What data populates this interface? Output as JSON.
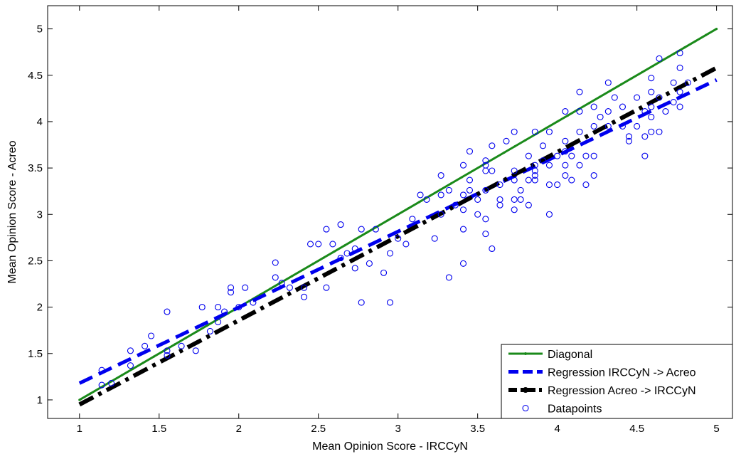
{
  "chart_data": {
    "type": "scatter",
    "title": "",
    "xlabel": "Mean Opinion Score - IRCCyN",
    "ylabel": "Mean Opinion Score - Acreo",
    "xlim": [
      0.8,
      5.1
    ],
    "ylim": [
      0.8,
      5.25
    ],
    "xticks": [
      "1",
      "1.5",
      "2",
      "2.5",
      "3",
      "3.5",
      "4",
      "4.5",
      "5"
    ],
    "yticks": [
      "1",
      "1.5",
      "2",
      "2.5",
      "3",
      "3.5",
      "4",
      "4.5",
      "5"
    ],
    "grid": false,
    "legend_position": "bottom-right",
    "series": [
      {
        "name": "Diagonal",
        "kind": "line",
        "color": "#1a8a1a",
        "style": "solid-dotted",
        "x": [
          1,
          5
        ],
        "y": [
          1,
          5
        ]
      },
      {
        "name": "Regression IRCCyN -> Acreo",
        "kind": "line",
        "color": "#0000ee",
        "style": "dashed",
        "x": [
          1,
          5
        ],
        "y": [
          1.18,
          4.45
        ]
      },
      {
        "name": "Regression Acreo -> IRCCyN",
        "kind": "line",
        "color": "#000000",
        "style": "dash-dot",
        "x": [
          1,
          5
        ],
        "y": [
          0.95,
          4.58
        ]
      },
      {
        "name": "Datapoints",
        "kind": "scatter",
        "color": "#0000ee",
        "marker": "circle-open",
        "points": [
          [
            1.14,
            1.32
          ],
          [
            1.14,
            1.16
          ],
          [
            1.2,
            1.18
          ],
          [
            1.32,
            1.53
          ],
          [
            1.32,
            1.37
          ],
          [
            1.41,
            1.58
          ],
          [
            1.45,
            1.69
          ],
          [
            1.55,
            1.95
          ],
          [
            1.55,
            1.53
          ],
          [
            1.55,
            1.48
          ],
          [
            1.64,
            1.58
          ],
          [
            1.73,
            1.53
          ],
          [
            1.77,
            2.0
          ],
          [
            1.82,
            1.74
          ],
          [
            1.87,
            2.0
          ],
          [
            1.87,
            1.84
          ],
          [
            1.91,
            1.95
          ],
          [
            1.95,
            2.21
          ],
          [
            1.95,
            2.16
          ],
          [
            2.0,
            2.0
          ],
          [
            2.04,
            2.21
          ],
          [
            2.09,
            2.05
          ],
          [
            2.23,
            2.48
          ],
          [
            2.23,
            2.32
          ],
          [
            2.27,
            2.26
          ],
          [
            2.32,
            2.21
          ],
          [
            2.41,
            2.11
          ],
          [
            2.41,
            2.21
          ],
          [
            2.45,
            2.68
          ],
          [
            2.5,
            2.68
          ],
          [
            2.55,
            2.84
          ],
          [
            2.55,
            2.21
          ],
          [
            2.59,
            2.68
          ],
          [
            2.64,
            2.89
          ],
          [
            2.64,
            2.53
          ],
          [
            2.68,
            2.58
          ],
          [
            2.73,
            2.42
          ],
          [
            2.73,
            2.63
          ],
          [
            2.77,
            2.84
          ],
          [
            2.77,
            2.05
          ],
          [
            2.82,
            2.47
          ],
          [
            2.86,
            2.84
          ],
          [
            2.91,
            2.37
          ],
          [
            2.95,
            2.58
          ],
          [
            2.95,
            2.05
          ],
          [
            3.0,
            2.74
          ],
          [
            3.05,
            2.68
          ],
          [
            3.09,
            2.95
          ],
          [
            3.14,
            3.21
          ],
          [
            3.18,
            3.16
          ],
          [
            3.23,
            2.74
          ],
          [
            3.27,
            3.42
          ],
          [
            3.27,
            3.21
          ],
          [
            3.27,
            3.0
          ],
          [
            3.32,
            3.26
          ],
          [
            3.32,
            2.32
          ],
          [
            3.36,
            3.1
          ],
          [
            3.41,
            3.53
          ],
          [
            3.41,
            3.21
          ],
          [
            3.41,
            3.05
          ],
          [
            3.41,
            2.84
          ],
          [
            3.41,
            2.47
          ],
          [
            3.45,
            3.68
          ],
          [
            3.45,
            3.37
          ],
          [
            3.45,
            3.26
          ],
          [
            3.5,
            3.16
          ],
          [
            3.5,
            3.0
          ],
          [
            3.55,
            3.58
          ],
          [
            3.55,
            3.53
          ],
          [
            3.55,
            3.47
          ],
          [
            3.55,
            3.26
          ],
          [
            3.55,
            2.95
          ],
          [
            3.55,
            2.79
          ],
          [
            3.59,
            3.74
          ],
          [
            3.59,
            3.47
          ],
          [
            3.59,
            2.63
          ],
          [
            3.64,
            3.32
          ],
          [
            3.64,
            3.16
          ],
          [
            3.64,
            3.1
          ],
          [
            3.68,
            3.79
          ],
          [
            3.73,
            3.89
          ],
          [
            3.73,
            3.47
          ],
          [
            3.73,
            3.37
          ],
          [
            3.73,
            3.16
          ],
          [
            3.73,
            3.05
          ],
          [
            3.77,
            3.26
          ],
          [
            3.77,
            3.16
          ],
          [
            3.82,
            3.63
          ],
          [
            3.82,
            3.37
          ],
          [
            3.82,
            3.1
          ],
          [
            3.86,
            3.89
          ],
          [
            3.86,
            3.53
          ],
          [
            3.86,
            3.47
          ],
          [
            3.86,
            3.42
          ],
          [
            3.86,
            3.37
          ],
          [
            3.91,
            3.74
          ],
          [
            3.91,
            3.58
          ],
          [
            3.95,
            3.89
          ],
          [
            3.95,
            3.53
          ],
          [
            3.95,
            3.32
          ],
          [
            3.95,
            3.0
          ],
          [
            4.0,
            3.63
          ],
          [
            4.0,
            3.32
          ],
          [
            4.05,
            4.11
          ],
          [
            4.05,
            3.79
          ],
          [
            4.05,
            3.68
          ],
          [
            4.05,
            3.53
          ],
          [
            4.05,
            3.42
          ],
          [
            4.09,
            3.63
          ],
          [
            4.09,
            3.37
          ],
          [
            4.14,
            4.32
          ],
          [
            4.14,
            4.11
          ],
          [
            4.14,
            3.89
          ],
          [
            4.14,
            3.53
          ],
          [
            4.18,
            3.63
          ],
          [
            4.18,
            3.32
          ],
          [
            4.23,
            4.16
          ],
          [
            4.23,
            3.95
          ],
          [
            4.23,
            3.63
          ],
          [
            4.23,
            3.42
          ],
          [
            4.27,
            4.05
          ],
          [
            4.32,
            4.42
          ],
          [
            4.32,
            4.11
          ],
          [
            4.32,
            3.95
          ],
          [
            4.36,
            4.26
          ],
          [
            4.41,
            4.16
          ],
          [
            4.41,
            3.95
          ],
          [
            4.45,
            3.84
          ],
          [
            4.45,
            3.79
          ],
          [
            4.5,
            4.26
          ],
          [
            4.5,
            3.95
          ],
          [
            4.55,
            4.11
          ],
          [
            4.55,
            3.63
          ],
          [
            4.55,
            3.84
          ],
          [
            4.59,
            4.47
          ],
          [
            4.59,
            4.32
          ],
          [
            4.59,
            4.16
          ],
          [
            4.59,
            4.05
          ],
          [
            4.59,
            3.89
          ],
          [
            4.64,
            4.68
          ],
          [
            4.64,
            4.26
          ],
          [
            4.64,
            3.89
          ],
          [
            4.68,
            4.11
          ],
          [
            4.73,
            4.42
          ],
          [
            4.73,
            4.21
          ],
          [
            4.77,
            4.74
          ],
          [
            4.77,
            4.58
          ],
          [
            4.77,
            4.32
          ],
          [
            4.77,
            4.16
          ],
          [
            4.82,
            4.42
          ]
        ]
      }
    ]
  }
}
